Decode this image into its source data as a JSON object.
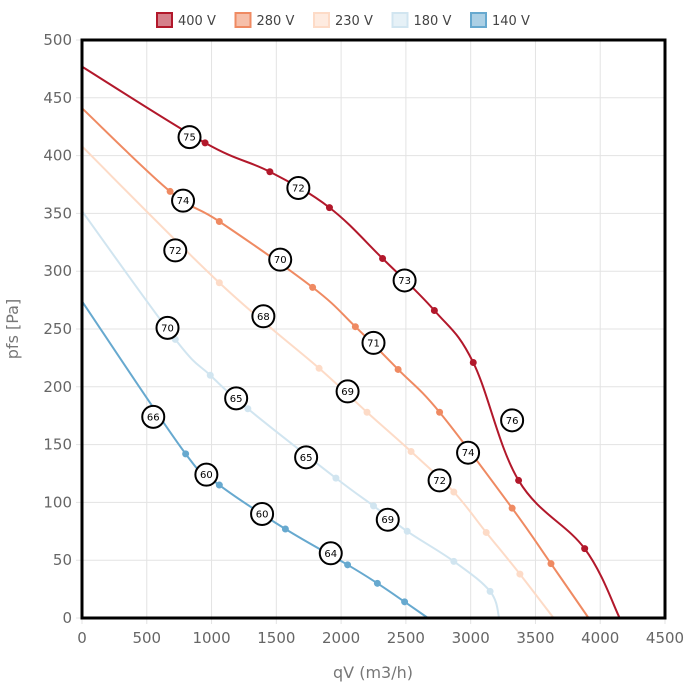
{
  "chart_data": {
    "type": "line",
    "xlabel": "qV (m3/h)",
    "ylabel": "pfs [Pa]",
    "xlim": [
      0,
      4500
    ],
    "ylim": [
      0,
      500
    ],
    "x_ticks": [
      "0",
      "500",
      "1000",
      "1500",
      "2000",
      "2500",
      "3000",
      "3500",
      "4000",
      "4500"
    ],
    "y_ticks": [
      "0",
      "50",
      "100",
      "150",
      "200",
      "250",
      "300",
      "350",
      "400",
      "450",
      "500"
    ],
    "grid": true,
    "legend_position": "top-center",
    "series": [
      {
        "name": "400 V",
        "color": "#b2182b",
        "points": [
          [
            0,
            477
          ],
          [
            950,
            411
          ],
          [
            1450,
            386
          ],
          [
            1910,
            355
          ],
          [
            2320,
            311
          ],
          [
            2720,
            266
          ],
          [
            3020,
            221
          ],
          [
            3370,
            119
          ],
          [
            3880,
            60
          ],
          [
            4150,
            0
          ]
        ]
      },
      {
        "name": "280 V",
        "color": "#ef8a62",
        "points": [
          [
            0,
            441
          ],
          [
            680,
            369
          ],
          [
            1060,
            343
          ],
          [
            1780,
            286
          ],
          [
            2110,
            252
          ],
          [
            2440,
            215
          ],
          [
            2760,
            178
          ],
          [
            3320,
            95
          ],
          [
            3620,
            47
          ],
          [
            3910,
            0
          ]
        ]
      },
      {
        "name": "230 V",
        "color": "#fddbc7",
        "points": [
          [
            0,
            408
          ],
          [
            1060,
            290
          ],
          [
            1830,
            216
          ],
          [
            2200,
            178
          ],
          [
            2540,
            144
          ],
          [
            2870,
            109
          ],
          [
            3120,
            74
          ],
          [
            3380,
            38
          ],
          [
            3640,
            0
          ]
        ]
      },
      {
        "name": "180 V",
        "color": "#d1e5f0",
        "points": [
          [
            0,
            352
          ],
          [
            720,
            241
          ],
          [
            990,
            210
          ],
          [
            1280,
            181
          ],
          [
            1960,
            121
          ],
          [
            2250,
            97
          ],
          [
            2510,
            75
          ],
          [
            2870,
            49
          ],
          [
            3150,
            23
          ],
          [
            3220,
            0
          ]
        ]
      },
      {
        "name": "140 V",
        "color": "#67a9cf",
        "points": [
          [
            0,
            274
          ],
          [
            800,
            142
          ],
          [
            1060,
            115
          ],
          [
            1570,
            77
          ],
          [
            2050,
            46
          ],
          [
            2280,
            30
          ],
          [
            2490,
            14
          ],
          [
            2670,
            0
          ]
        ]
      }
    ],
    "annotations": [
      {
        "label": "75",
        "x": 830,
        "y": 416
      },
      {
        "label": "72",
        "x": 1670,
        "y": 372
      },
      {
        "label": "73",
        "x": 2490,
        "y": 292
      },
      {
        "label": "76",
        "x": 3320,
        "y": 171
      },
      {
        "label": "74",
        "x": 780,
        "y": 361
      },
      {
        "label": "70",
        "x": 1530,
        "y": 310
      },
      {
        "label": "71",
        "x": 2250,
        "y": 238
      },
      {
        "label": "74",
        "x": 2980,
        "y": 143
      },
      {
        "label": "72",
        "x": 720,
        "y": 318
      },
      {
        "label": "68",
        "x": 1400,
        "y": 261
      },
      {
        "label": "69",
        "x": 2050,
        "y": 196
      },
      {
        "label": "72",
        "x": 2760,
        "y": 119
      },
      {
        "label": "70",
        "x": 660,
        "y": 251
      },
      {
        "label": "65",
        "x": 1190,
        "y": 190
      },
      {
        "label": "65",
        "x": 1730,
        "y": 139
      },
      {
        "label": "69",
        "x": 2360,
        "y": 85
      },
      {
        "label": "66",
        "x": 550,
        "y": 174
      },
      {
        "label": "60",
        "x": 960,
        "y": 124
      },
      {
        "label": "60",
        "x": 1390,
        "y": 90
      },
      {
        "label": "64",
        "x": 1920,
        "y": 56
      }
    ]
  }
}
